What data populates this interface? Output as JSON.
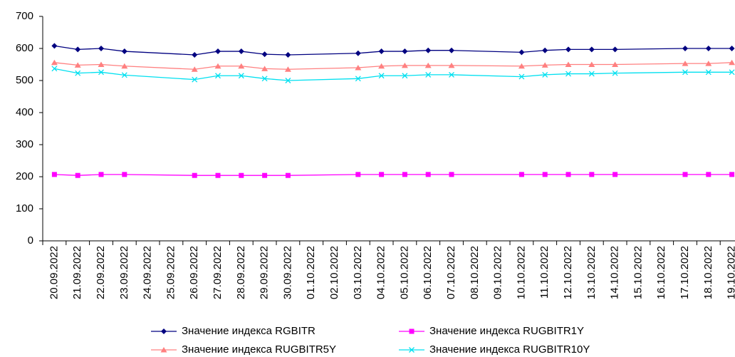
{
  "chart_data": {
    "type": "line",
    "categories": [
      "20.09.2022",
      "21.09.2022",
      "22.09.2022",
      "23.09.2022",
      "24.09.2022",
      "25.09.2022",
      "26.09.2022",
      "27.09.2022",
      "28.09.2022",
      "29.09.2022",
      "30.09.2022",
      "01.10.2022",
      "02.10.2022",
      "03.10.2022",
      "04.10.2022",
      "05.10.2022",
      "06.10.2022",
      "07.10.2022",
      "08.10.2022",
      "09.10.2022",
      "10.10.2022",
      "11.10.2022",
      "12.10.2022",
      "13.10.2022",
      "14.10.2022",
      "15.10.2022",
      "16.10.2022",
      "17.10.2022",
      "18.10.2022",
      "19.10.2022"
    ],
    "series": [
      {
        "name": "Значение индекса RGBITR",
        "color": "#000080",
        "marker": "diamond",
        "values": [
          608,
          597,
          600,
          591,
          null,
          null,
          580,
          591,
          591,
          582,
          580,
          null,
          null,
          585,
          591,
          591,
          594,
          594,
          null,
          null,
          588,
          594,
          597,
          597,
          597,
          null,
          null,
          600,
          600,
          600
        ]
      },
      {
        "name": "Значение индекса RUGBITR1Y",
        "color": "#ff00ff",
        "marker": "square",
        "values": [
          207,
          204,
          207,
          207,
          null,
          null,
          204,
          204,
          204,
          204,
          204,
          null,
          null,
          207,
          207,
          207,
          207,
          207,
          null,
          null,
          207,
          207,
          207,
          207,
          207,
          null,
          null,
          207,
          207,
          207
        ]
      },
      {
        "name": "Значение индекса RUGBITR5Y",
        "color": "#ff8080",
        "marker": "triangle",
        "values": [
          556,
          548,
          550,
          545,
          null,
          null,
          535,
          545,
          545,
          537,
          535,
          null,
          null,
          540,
          545,
          547,
          547,
          547,
          null,
          null,
          545,
          548,
          550,
          550,
          550,
          null,
          null,
          553,
          553,
          556
        ]
      },
      {
        "name": "Значение индекса RUGBITR10Y",
        "color": "#00e0f0",
        "marker": "x",
        "values": [
          537,
          523,
          526,
          517,
          null,
          null,
          503,
          515,
          515,
          506,
          500,
          null,
          null,
          506,
          515,
          515,
          518,
          518,
          null,
          null,
          512,
          518,
          521,
          521,
          523,
          null,
          null,
          526,
          526,
          526
        ]
      }
    ],
    "connect_gaps": true,
    "ylim": [
      0,
      700
    ],
    "yticks": [
      0,
      100,
      200,
      300,
      400,
      500,
      600,
      700
    ]
  }
}
